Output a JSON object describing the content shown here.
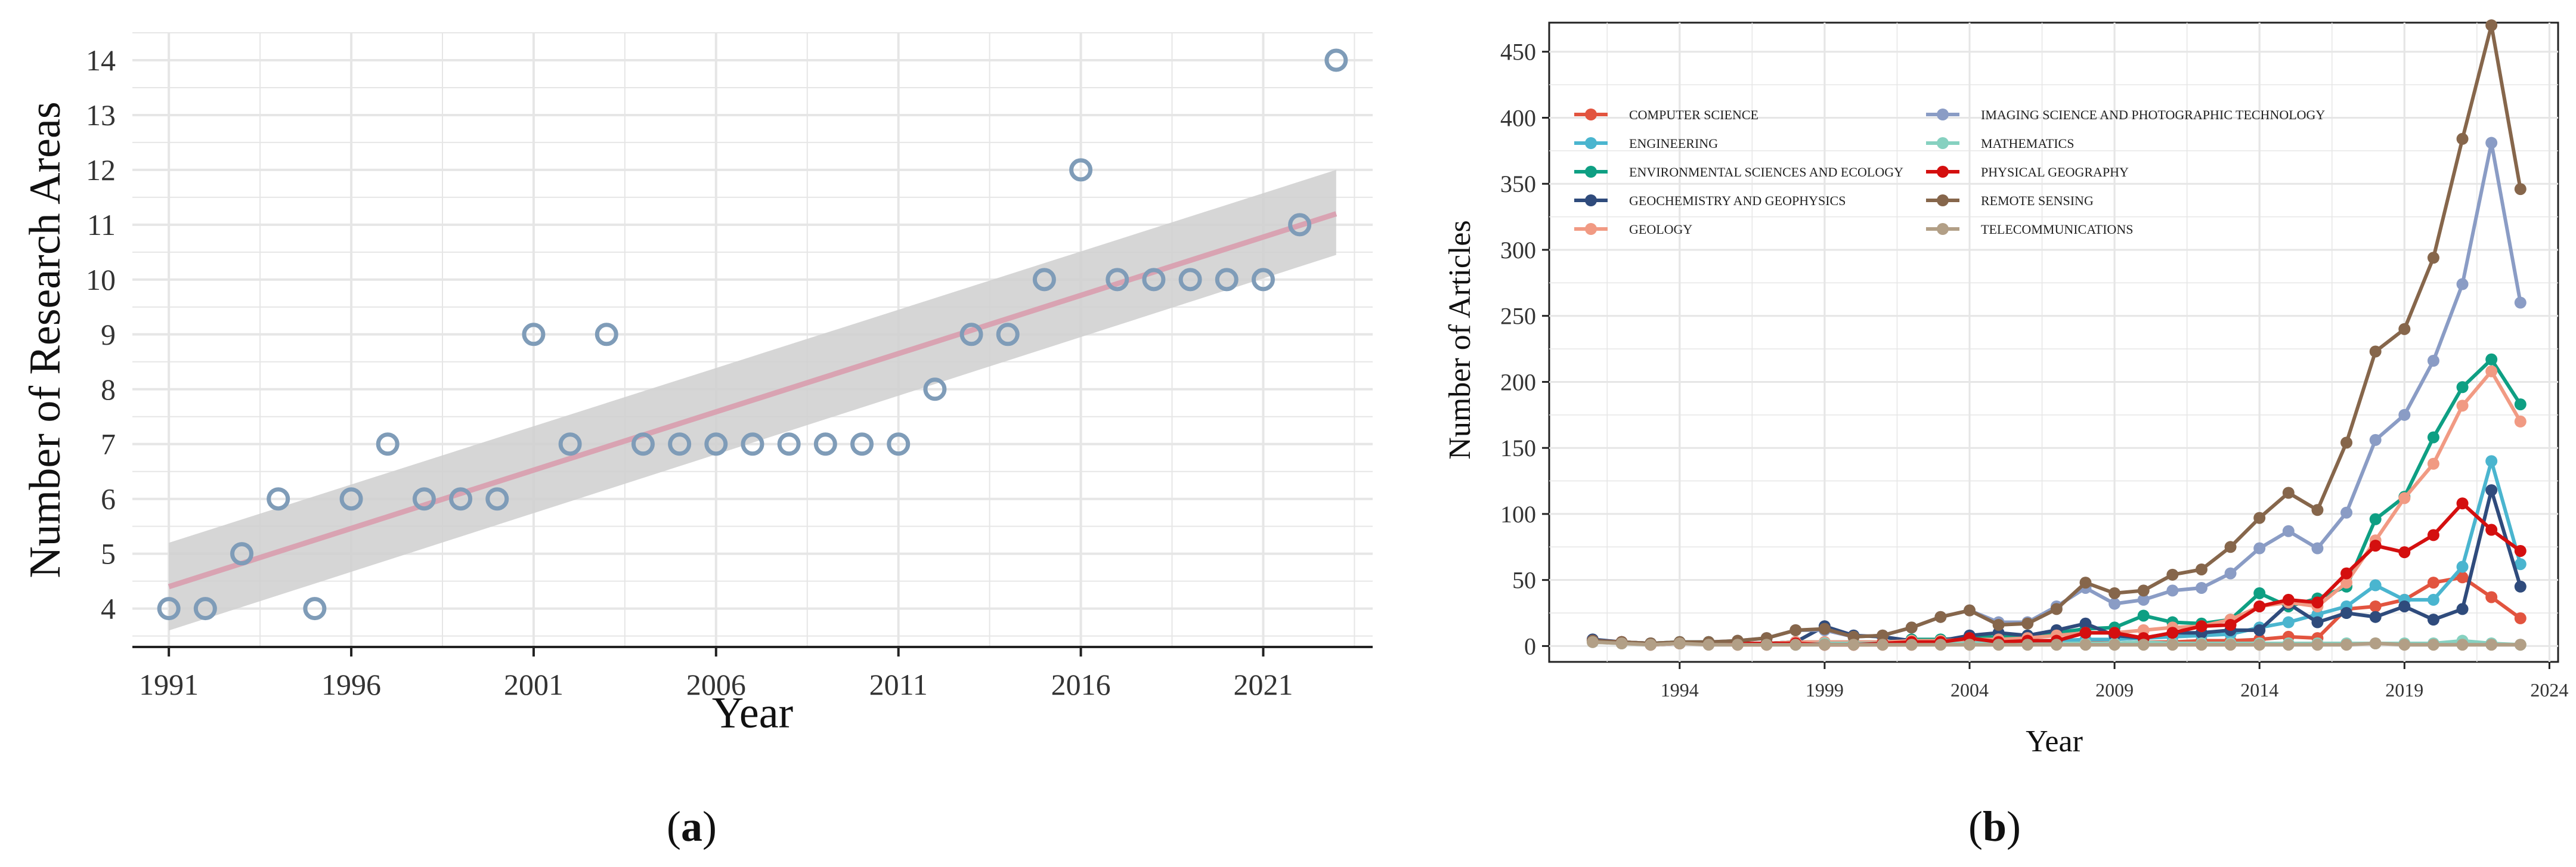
{
  "figure_labels": {
    "a_prefix": "(",
    "a_letter": "a",
    "a_suffix": ")",
    "b_prefix": "(",
    "b_letter": "b",
    "b_suffix": ")"
  },
  "colors": {
    "a_points": "#7f9cb8",
    "a_band": "#cfcfcf",
    "a_fit": "#d9a3b2",
    "grid": "#e6e6e6"
  },
  "chart_data": [
    {
      "type": "scatter",
      "panel": "a",
      "title": "",
      "xlabel": "Year",
      "ylabel": "Number of Research Areas",
      "xlim": [
        1990,
        2024
      ],
      "ylim": [
        3.3,
        14.5
      ],
      "xticks": [
        1991,
        1996,
        2001,
        2006,
        2011,
        2016,
        2021
      ],
      "yticks": [
        4,
        5,
        6,
        7,
        8,
        9,
        10,
        11,
        12,
        13,
        14
      ],
      "x": [
        1991,
        1992,
        1993,
        1994,
        1995,
        1996,
        1997,
        1998,
        1999,
        2000,
        2001,
        2002,
        2003,
        2004,
        2005,
        2006,
        2007,
        2008,
        2009,
        2010,
        2011,
        2012,
        2013,
        2014,
        2015,
        2016,
        2017,
        2018,
        2019,
        2020,
        2021,
        2022,
        2023
      ],
      "y": [
        4,
        4,
        5,
        6,
        4,
        6,
        7,
        6,
        6,
        6,
        9,
        7,
        9,
        7,
        7,
        7,
        7,
        7,
        7,
        7,
        7,
        8,
        9,
        9,
        10,
        12,
        10,
        10,
        10,
        10,
        10,
        11,
        14
      ],
      "trend": {
        "x": [
          1991,
          2023
        ],
        "y": [
          4.4,
          11.2
        ],
        "band_lower": [
          3.6,
          10.45
        ],
        "band_upper": [
          5.2,
          12.0
        ]
      },
      "grid": true
    },
    {
      "type": "line",
      "panel": "b",
      "title": "",
      "xlabel": "Year",
      "ylabel": "Number of Articles",
      "xlim": [
        1989.5,
        2024.3
      ],
      "ylim": [
        -12,
        472
      ],
      "xticks": [
        1994,
        1999,
        2004,
        2009,
        2014,
        2019,
        2024
      ],
      "yticks": [
        0,
        50,
        100,
        150,
        200,
        250,
        300,
        350,
        400,
        450
      ],
      "x": [
        1991,
        1992,
        1993,
        1994,
        1995,
        1996,
        1997,
        1998,
        1999,
        2000,
        2001,
        2002,
        2003,
        2004,
        2005,
        2006,
        2007,
        2008,
        2009,
        2010,
        2011,
        2012,
        2013,
        2014,
        2015,
        2016,
        2017,
        2018,
        2019,
        2020,
        2021,
        2022,
        2023
      ],
      "legend_position": "top-left",
      "series": [
        {
          "name": "COMPUTER SCIENCE",
          "color": "#e2543f",
          "values": [
            4,
            3,
            2,
            2,
            2,
            1,
            1,
            2,
            1,
            1,
            1,
            1,
            2,
            2,
            2,
            2,
            3,
            3,
            2,
            3,
            3,
            4,
            4,
            5,
            7,
            6,
            28,
            30,
            35,
            48,
            52,
            37,
            21
          ]
        },
        {
          "name": "ENGINEERING",
          "color": "#4ab5cf",
          "values": [
            4,
            3,
            2,
            2,
            2,
            2,
            2,
            3,
            2,
            2,
            2,
            3,
            3,
            4,
            4,
            4,
            4,
            5,
            5,
            6,
            7,
            8,
            9,
            14,
            18,
            24,
            30,
            46,
            35,
            35,
            60,
            140,
            62
          ]
        },
        {
          "name": "ENVIRONMENTAL SCIENCES AND ECOLOGY",
          "color": "#0e9f83",
          "values": [
            4,
            3,
            2,
            3,
            3,
            2,
            2,
            3,
            3,
            3,
            3,
            5,
            5,
            6,
            7,
            8,
            10,
            13,
            14,
            23,
            18,
            17,
            20,
            40,
            30,
            36,
            45,
            96,
            113,
            158,
            196,
            217,
            183
          ]
        },
        {
          "name": "GEOCHEMISTRY AND GEOPHYSICS",
          "color": "#2f4b7c",
          "values": [
            5,
            3,
            2,
            2,
            2,
            2,
            2,
            3,
            15,
            8,
            7,
            4,
            4,
            8,
            10,
            8,
            12,
            17,
            8,
            6,
            10,
            10,
            12,
            12,
            32,
            18,
            25,
            22,
            30,
            20,
            28,
            118,
            45
          ]
        },
        {
          "name": "GEOLOGY",
          "color": "#f19a83",
          "values": [
            4,
            3,
            2,
            2,
            2,
            2,
            2,
            3,
            3,
            3,
            3,
            4,
            4,
            5,
            5,
            6,
            8,
            10,
            10,
            12,
            14,
            15,
            20,
            30,
            33,
            30,
            48,
            80,
            112,
            138,
            182,
            208,
            170
          ]
        },
        {
          "name": "IMAGING SCIENCE AND PHOTOGRAPHIC TECHNOLOGY",
          "color": "#8a9cc5",
          "values": [
            4,
            3,
            2,
            3,
            3,
            4,
            6,
            12,
            12,
            7,
            8,
            14,
            22,
            27,
            18,
            18,
            30,
            44,
            32,
            35,
            42,
            44,
            55,
            74,
            87,
            74,
            101,
            156,
            175,
            216,
            274,
            381,
            260
          ]
        },
        {
          "name": "MATHEMATICS",
          "color": "#86d1c0",
          "values": [
            3,
            2,
            1,
            2,
            2,
            2,
            2,
            1,
            2,
            2,
            2,
            2,
            2,
            2,
            2,
            2,
            2,
            2,
            2,
            3,
            2,
            2,
            2,
            2,
            2,
            2,
            2,
            2,
            2,
            2,
            4,
            2,
            1
          ]
        },
        {
          "name": "PHYSICAL GEOGRAPHY",
          "color": "#d40f0f",
          "values": [
            4,
            3,
            1,
            2,
            2,
            2,
            2,
            2,
            1,
            1,
            2,
            3,
            3,
            6,
            3,
            4,
            4,
            10,
            10,
            6,
            10,
            15,
            16,
            30,
            35,
            33,
            55,
            76,
            71,
            84,
            108,
            88,
            72
          ]
        },
        {
          "name": "REMOTE SENSING",
          "color": "#86664b",
          "values": [
            4,
            3,
            2,
            3,
            3,
            4,
            6,
            12,
            13,
            7,
            8,
            14,
            22,
            27,
            16,
            17,
            28,
            48,
            40,
            42,
            54,
            58,
            75,
            97,
            116,
            103,
            154,
            223,
            240,
            294,
            384,
            470,
            346
          ]
        },
        {
          "name": "TELECOMMUNICATIONS",
          "color": "#b29f86",
          "values": [
            3,
            2,
            1,
            2,
            1,
            1,
            1,
            1,
            1,
            1,
            1,
            1,
            1,
            1,
            1,
            1,
            1,
            1,
            1,
            1,
            1,
            1,
            1,
            1,
            1,
            1,
            1,
            2,
            1,
            1,
            1,
            1,
            1
          ]
        }
      ],
      "grid": true
    }
  ]
}
